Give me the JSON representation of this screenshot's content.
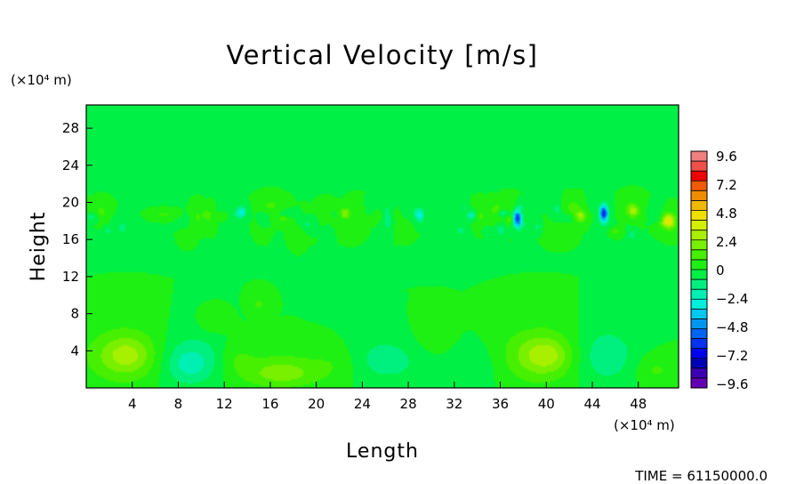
{
  "chart_data": {
    "type": "heatmap",
    "title": "Vertical Velocity [m/s]",
    "xlabel": "Length",
    "ylabel": "Height",
    "x_unit": "(×10⁴ m)",
    "y_unit": "(×10⁴ m)",
    "x_ticks": [
      "4",
      "8",
      "12",
      "16",
      "20",
      "24",
      "28",
      "32",
      "36",
      "40",
      "44",
      "48"
    ],
    "y_ticks": [
      "4",
      "8",
      "12",
      "16",
      "20",
      "24",
      "28"
    ],
    "xlim": [
      0,
      51.5
    ],
    "ylim": [
      0,
      30.5
    ],
    "colorbar": {
      "labels": [
        "9.6",
        "7.2",
        "4.8",
        "2.4",
        "0",
        "−2.4",
        "−4.8",
        "−7.2",
        "−9.6"
      ],
      "range": [
        -10.2,
        10.2
      ],
      "colors": [
        "#f08080",
        "#f0504a",
        "#f00000",
        "#f05a00",
        "#f08c00",
        "#f0b800",
        "#f0e000",
        "#d2f000",
        "#a6f000",
        "#78f000",
        "#46f000",
        "#1ef014",
        "#00f046",
        "#00f080",
        "#00f0b4",
        "#00f0e0",
        "#00c8f0",
        "#0096f0",
        "#0064f0",
        "#0032f0",
        "#0000f0",
        "#0000b4",
        "#3c00b4",
        "#6400b4"
      ]
    },
    "field_background": 0.0,
    "features": [
      {
        "x": 3.5,
        "y": 3.5,
        "rx": 3.5,
        "ry": 3.0,
        "w": 2.2
      },
      {
        "x": 3.5,
        "y": 3.5,
        "rx": 1.8,
        "ry": 1.6,
        "w": 1.0
      },
      {
        "x": 9.0,
        "y": 3.0,
        "rx": 3.2,
        "ry": 3.0,
        "w": -1.6
      },
      {
        "x": 9.0,
        "y": 2.5,
        "rx": 1.8,
        "ry": 1.6,
        "w": -0.9
      },
      {
        "x": 13.0,
        "y": 3.5,
        "rx": 1.5,
        "ry": 2.0,
        "w": 0.8
      },
      {
        "x": 17.0,
        "y": 1.8,
        "rx": 4.5,
        "ry": 2.0,
        "w": 1.6
      },
      {
        "x": 17.0,
        "y": 1.5,
        "rx": 2.2,
        "ry": 1.0,
        "w": 0.8
      },
      {
        "x": 22.0,
        "y": 3.0,
        "rx": 2.0,
        "ry": 2.0,
        "w": 0.6
      },
      {
        "x": 26.0,
        "y": 3.0,
        "rx": 3.5,
        "ry": 2.5,
        "w": -1.3
      },
      {
        "x": 30.0,
        "y": 5.0,
        "rx": 2.0,
        "ry": 2.0,
        "w": 0.5
      },
      {
        "x": 34.0,
        "y": 2.5,
        "rx": 2.5,
        "ry": 2.5,
        "w": -0.6
      },
      {
        "x": 39.5,
        "y": 3.5,
        "rx": 3.5,
        "ry": 3.0,
        "w": 2.2
      },
      {
        "x": 40.0,
        "y": 3.5,
        "rx": 1.8,
        "ry": 1.6,
        "w": 1.2
      },
      {
        "x": 45.0,
        "y": 3.5,
        "rx": 2.8,
        "ry": 3.0,
        "w": -1.6
      },
      {
        "x": 49.5,
        "y": 2.0,
        "rx": 1.8,
        "ry": 1.6,
        "w": 1.0
      },
      {
        "x": 11.0,
        "y": 7.0,
        "rx": 1.2,
        "ry": 1.2,
        "w": 0.8
      },
      {
        "x": 15.0,
        "y": 9.0,
        "rx": 0.7,
        "ry": 0.9,
        "w": 1.0
      },
      {
        "x": 37.5,
        "y": 18.3,
        "rx": 0.35,
        "ry": 0.9,
        "w": -6.5
      },
      {
        "x": 45.0,
        "y": 18.8,
        "rx": 0.35,
        "ry": 0.9,
        "w": -7.0
      },
      {
        "x": 50.5,
        "y": 18.0,
        "rx": 0.6,
        "ry": 0.8,
        "w": 3.8
      },
      {
        "x": 43.0,
        "y": 18.5,
        "rx": 0.5,
        "ry": 0.6,
        "w": 2.8
      },
      {
        "x": 13.5,
        "y": 19.0,
        "rx": 0.35,
        "ry": 0.6,
        "w": -3.0
      },
      {
        "x": 29.0,
        "y": 18.5,
        "rx": 0.35,
        "ry": 0.6,
        "w": -2.8
      },
      {
        "x": 22.5,
        "y": 18.8,
        "rx": 0.5,
        "ry": 0.6,
        "w": 2.5
      },
      {
        "x": 33.5,
        "y": 18.6,
        "rx": 0.4,
        "ry": 0.5,
        "w": -2.6
      }
    ]
  },
  "footer": {
    "time_label": "TIME = 61150000.0"
  }
}
